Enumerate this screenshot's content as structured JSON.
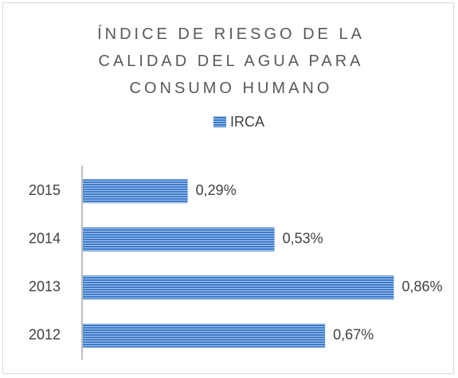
{
  "chart_data": {
    "type": "bar",
    "orientation": "horizontal",
    "title": "ÍNDICE DE RIESGO DE LA CALIDAD DEL AGUA PARA CONSUMO HUMANO",
    "categories": [
      "2015",
      "2014",
      "2013",
      "2012"
    ],
    "series": [
      {
        "name": "IRCA",
        "color": "#3d7ccc",
        "values": [
          0.29,
          0.53,
          0.86,
          0.67
        ],
        "value_labels": [
          "0,29%",
          "0,53%",
          "0,86%",
          "0,67%"
        ]
      }
    ],
    "xlim": [
      0,
      1
    ],
    "legend": "top"
  }
}
